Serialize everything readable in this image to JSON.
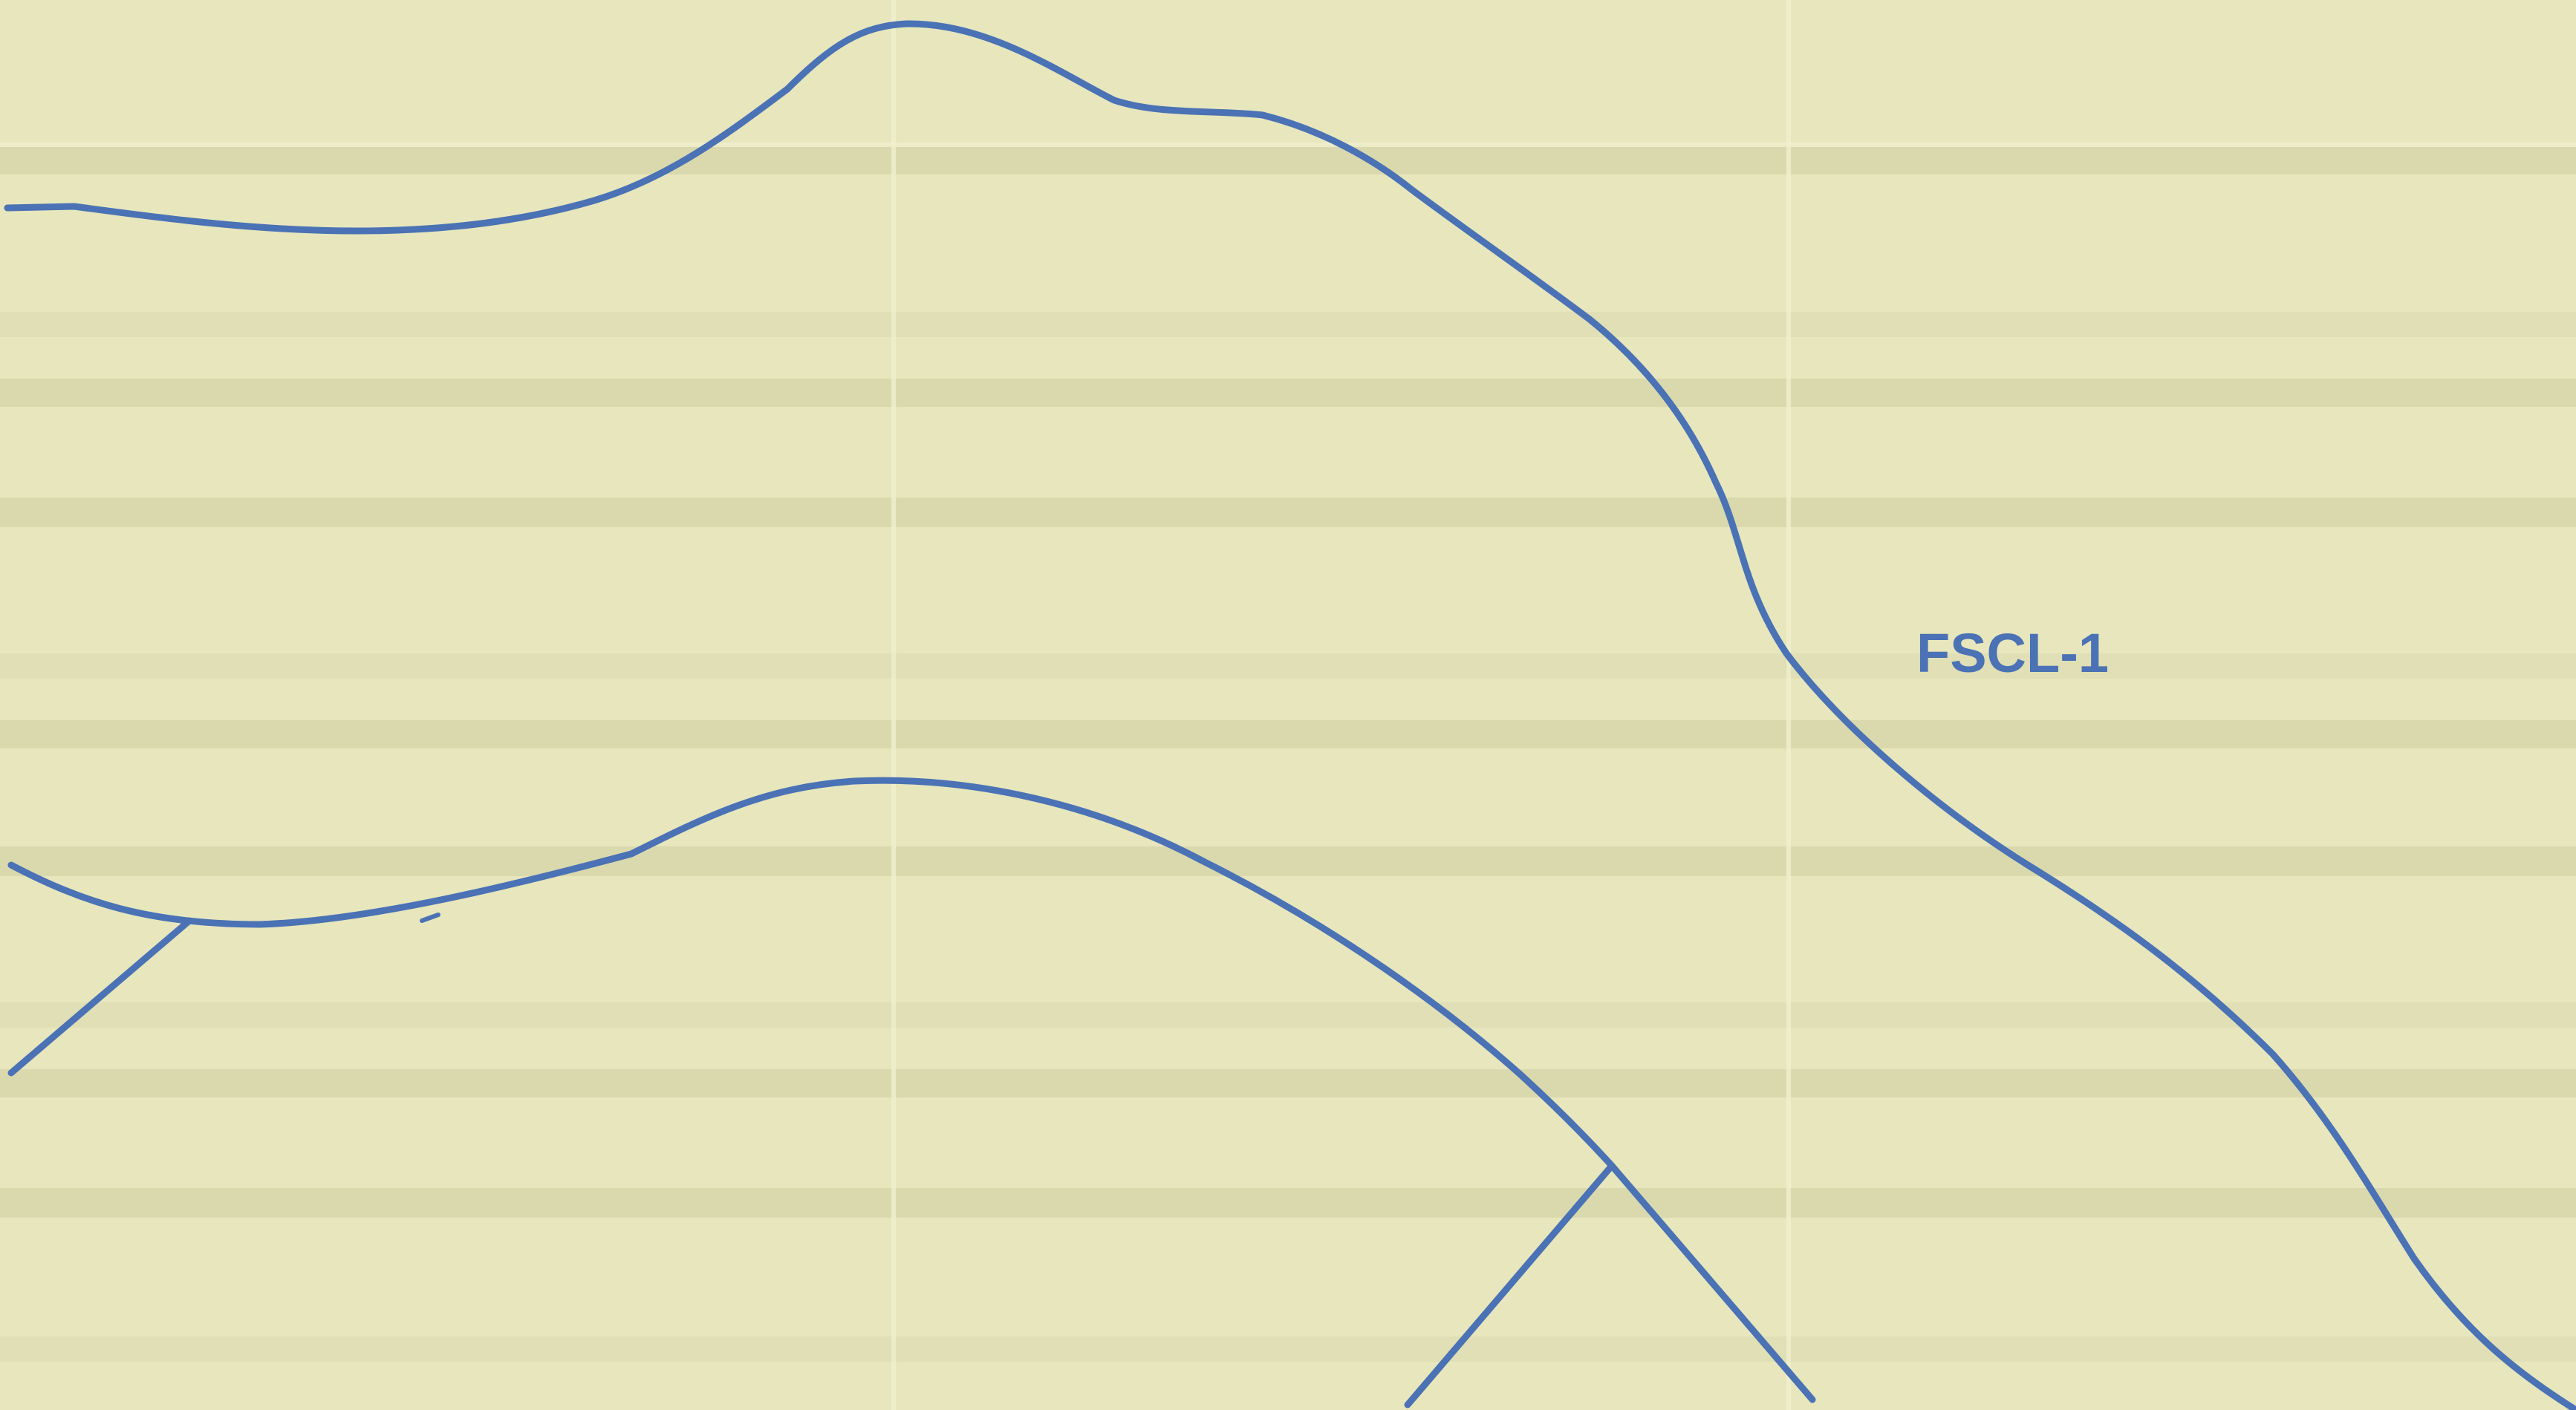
{
  "figure": {
    "label": "FSCL-1",
    "line_color": "#4a72b4",
    "label_color": "#4a72b4",
    "paper_color": "#e7e6bd",
    "band_color": "#cfcda3"
  }
}
